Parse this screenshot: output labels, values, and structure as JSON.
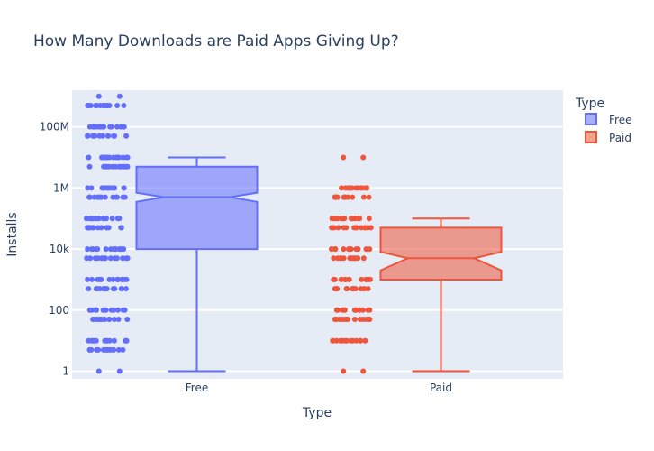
{
  "chart_data": {
    "type": "box",
    "title": "How Many Downloads are Paid Apps Giving Up?",
    "xlabel": "Type",
    "ylabel": "Installs",
    "yscale": "log",
    "ylim_log10": [
      -0.25,
      9.2
    ],
    "categories": [
      "Free",
      "Paid"
    ],
    "yticks": [
      {
        "value": 1,
        "label": "1"
      },
      {
        "value": 100,
        "label": "100"
      },
      {
        "value": 10000,
        "label": "10k"
      },
      {
        "value": 1000000,
        "label": "1M"
      },
      {
        "value": 100000000,
        "label": "100M"
      }
    ],
    "legend": {
      "title": "Type",
      "position": "top-right",
      "items": [
        "Free",
        "Paid"
      ]
    },
    "series": [
      {
        "name": "Free",
        "color": "#636efa",
        "fill": "rgba(99,110,250,0.55)",
        "box": {
          "min": 1,
          "q1": 10000,
          "median": 500000,
          "q3": 5000000,
          "max": 10000000,
          "notch_low": 350000,
          "notch_high": 700000
        },
        "points": [
          1,
          5,
          10,
          50,
          100,
          500,
          1000,
          5000,
          10000,
          50000,
          100000,
          500000,
          1000000,
          5000000,
          10000000,
          50000000,
          100000000,
          500000000,
          1000000000
        ]
      },
      {
        "name": "Paid",
        "color": "#ef553b",
        "fill": "rgba(239,85,59,0.55)",
        "box": {
          "min": 1,
          "q1": 1000,
          "median": 5000,
          "q3": 50000,
          "max": 100000,
          "notch_low": 2000,
          "notch_high": 8000
        },
        "points": [
          1,
          10,
          50,
          100,
          500,
          1000,
          5000,
          10000,
          50000,
          100000,
          500000,
          1000000,
          10000000
        ]
      }
    ]
  }
}
